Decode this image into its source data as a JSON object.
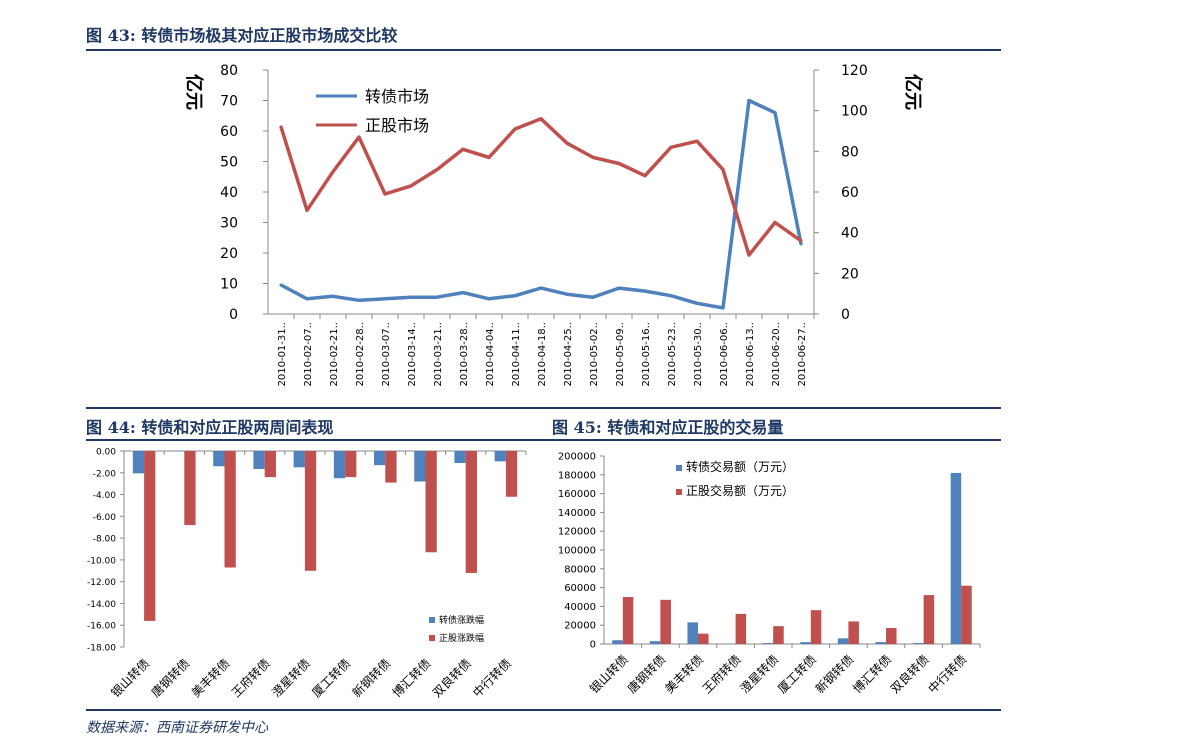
{
  "figures": {
    "fig43_title": "图 43:  转债市场极其对应正股市场成交比较",
    "fig44_title": "图 44:  转债和对应正股两周间表现",
    "fig45_title": "图 45:  转债和对应正股的交易量"
  },
  "source": "数据来源：西南证券研发中心",
  "colors": {
    "blue": "#4f81bd",
    "red": "#c0504d",
    "title": "#1f3864"
  },
  "chart_data": [
    {
      "id": "fig43",
      "type": "line",
      "x": [
        "2010-01-31..",
        "2010-02-07..",
        "2010-02-21..",
        "2010-02-28..",
        "2010-03-07..",
        "2010-03-14..",
        "2010-03-21..",
        "2010-03-28..",
        "2010-04-04..",
        "2010-04-11..",
        "2010-04-18..",
        "2010-04-25..",
        "2010-05-02..",
        "2010-05-09..",
        "2010-05-16..",
        "2010-05-23..",
        "2010-05-30..",
        "2010-06-06..",
        "2010-06-13..",
        "2010-06-20..",
        "2010-06-27.."
      ],
      "series": [
        {
          "name": "转债市场",
          "axis": "left",
          "color": "#4f81bd",
          "values": [
            9.5,
            5,
            5.8,
            4.5,
            5,
            5.5,
            5.5,
            7,
            5,
            6,
            8.5,
            6.5,
            5.5,
            8.5,
            7.5,
            6,
            3.5,
            2,
            70,
            66,
            23
          ]
        },
        {
          "name": "正股市场",
          "axis": "right",
          "color": "#c0504d",
          "values": [
            92,
            51,
            70,
            87,
            59,
            63,
            71,
            81,
            77,
            91,
            96,
            84,
            77,
            74,
            68,
            82,
            85,
            71,
            29,
            45,
            36
          ]
        }
      ],
      "ylabel_left": "亿元",
      "ylabel_right": "亿元",
      "ylim_left": [
        0,
        80
      ],
      "yticks_left": [
        "0",
        "10",
        "20",
        "30",
        "40",
        "50",
        "60",
        "70",
        "80"
      ],
      "ylim_right": [
        0,
        120
      ],
      "yticks_right": [
        "0",
        "20",
        "40",
        "60",
        "80",
        "100",
        "120"
      ],
      "legend": "top-left",
      "grid": false
    },
    {
      "id": "fig44",
      "type": "bar",
      "categories": [
        "银山转债",
        "唐钢转债",
        "美丰转债",
        "王府转债",
        "澄星转债",
        "厦工转债",
        "新钢转债",
        "博汇转债",
        "双良转债",
        "中行转债"
      ],
      "series": [
        {
          "name": "转债涨跌幅",
          "color": "#4f81bd",
          "values": [
            -2.05,
            0,
            -1.4,
            -1.65,
            -1.5,
            -2.5,
            -1.3,
            -2.8,
            -1.1,
            -0.95
          ]
        },
        {
          "name": "正股涨跌幅",
          "color": "#c0504d",
          "values": [
            -15.6,
            -6.8,
            -10.7,
            -2.4,
            -11.0,
            -2.4,
            -2.9,
            -9.3,
            -11.2,
            -4.2
          ]
        }
      ],
      "ylim": [
        -18,
        0
      ],
      "yticks": [
        "0.00",
        "-2.00",
        "-4.00",
        "-6.00",
        "-8.00",
        "-10.00",
        "-12.00",
        "-14.00",
        "-16.00",
        "-18.00"
      ],
      "legend": "bottom-right",
      "grid": false
    },
    {
      "id": "fig45",
      "type": "bar",
      "categories": [
        "银山转债",
        "唐钢转债",
        "美丰转债",
        "王府转债",
        "澄星转债",
        "厦工转债",
        "新钢转债",
        "博汇转债",
        "双良转债",
        "中行转债"
      ],
      "series": [
        {
          "name": "转债交易额（万元）",
          "color": "#4f81bd",
          "values": [
            4000,
            3000,
            23000,
            500,
            1000,
            2000,
            6000,
            2000,
            1000,
            182000
          ]
        },
        {
          "name": "正股交易额（万元）",
          "color": "#c0504d",
          "values": [
            50000,
            47000,
            11000,
            32000,
            19000,
            36000,
            24000,
            17000,
            52000,
            62000
          ]
        }
      ],
      "ylim": [
        0,
        200000
      ],
      "yticks": [
        "0",
        "20000",
        "40000",
        "60000",
        "80000",
        "100000",
        "120000",
        "140000",
        "160000",
        "180000",
        "200000"
      ],
      "legend": "top-left",
      "grid": false
    }
  ]
}
